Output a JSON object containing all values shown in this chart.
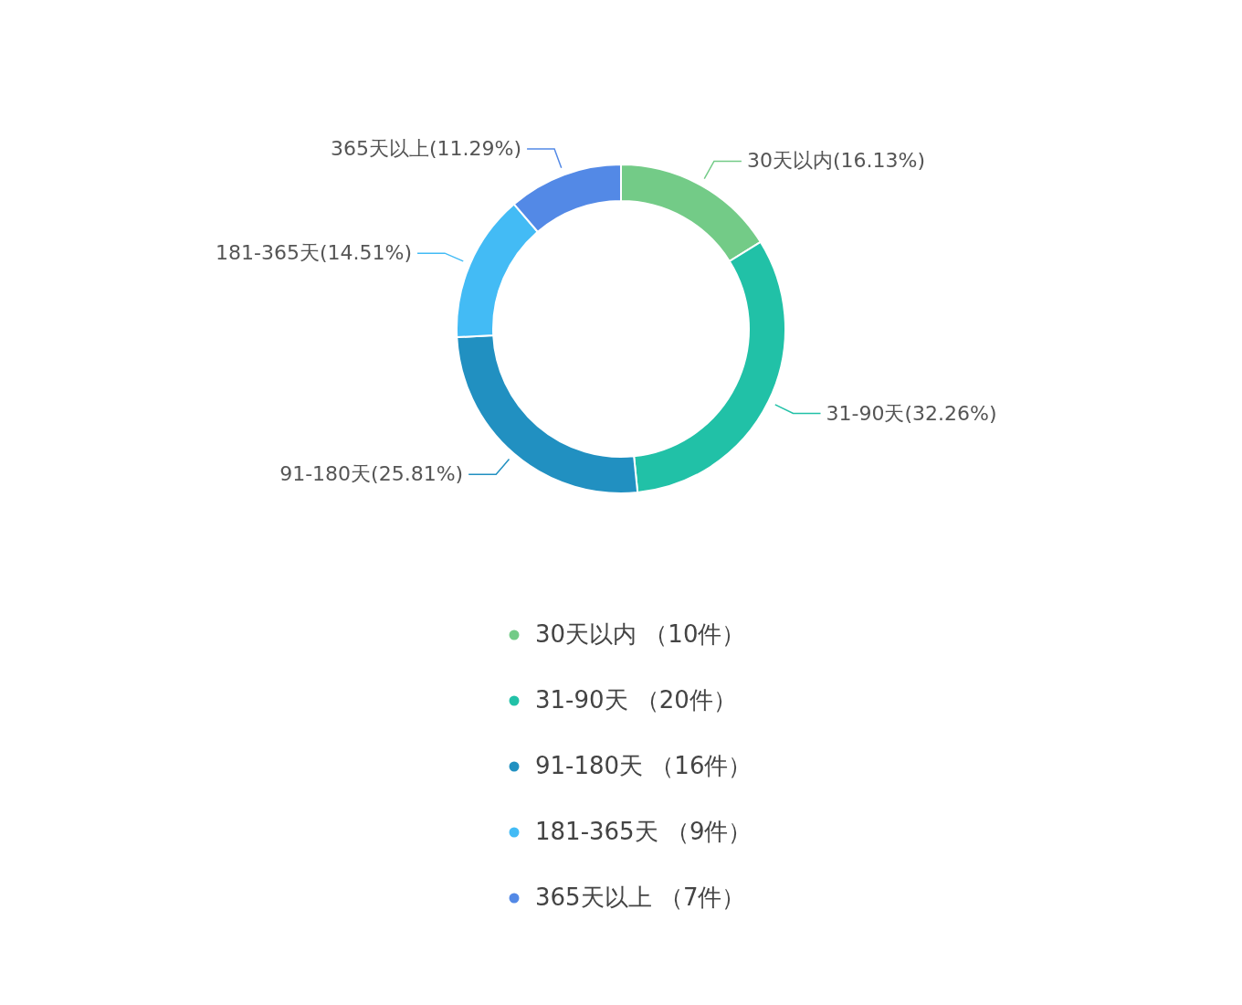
{
  "chart_data": {
    "type": "donut",
    "categories": [
      "30天以内 （10件）",
      "31-90天 （20件）",
      "91-180天 （16件）",
      "181-365天 （9件）",
      "365天以上 （7件）"
    ],
    "values": [
      16.13,
      32.26,
      25.81,
      14.51,
      11.29
    ],
    "colors": [
      "#73cb87",
      "#21c1a7",
      "#2190c1",
      "#43bbf5",
      "#5389e6"
    ],
    "value_labels": [
      "30天以内(16.13%)",
      "31-90天(32.26%)",
      "91-180天(25.81%)",
      "181-365天(14.51%)",
      "365天以上(11.29%)"
    ],
    "legend": "bottom"
  }
}
